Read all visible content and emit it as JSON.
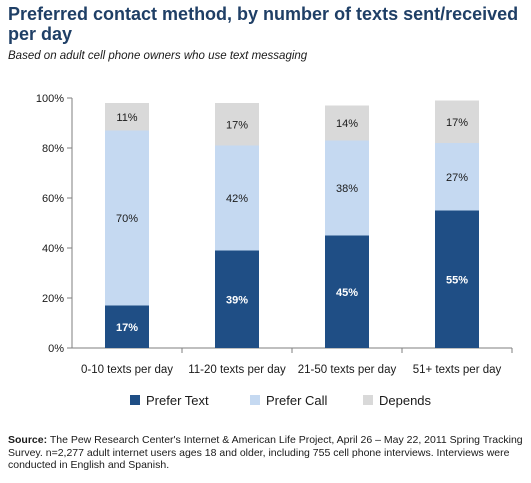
{
  "title": "Preferred contact method, by number of texts sent/received per day",
  "subtitle": "Based on adult cell phone owners who use text messaging",
  "source": {
    "label": "Source:",
    "text": "The Pew Research Center's Internet & American Life Project, April 26 – May 22, 2011 Spring Tracking Survey. n=2,277 adult internet users ages 18 and older, including 755 cell phone interviews. Interviews were conducted in English and Spanish."
  },
  "chart_data": {
    "type": "bar",
    "stacked": true,
    "categories": [
      "0-10 texts per day",
      "11-20 texts per day",
      "21-50 texts per day",
      "51+ texts per day"
    ],
    "series": [
      {
        "name": "Prefer Text",
        "values": [
          17,
          39,
          45,
          55
        ],
        "labels": [
          "17%",
          "39%",
          "45%",
          "55%"
        ],
        "color": "#1f4e85"
      },
      {
        "name": "Prefer Call",
        "values": [
          70,
          42,
          38,
          27
        ],
        "labels": [
          "70%",
          "42%",
          "38%",
          "27%"
        ],
        "color": "#c5d9f1"
      },
      {
        "name": "Depends",
        "values": [
          11,
          17,
          14,
          17
        ],
        "labels": [
          "11%",
          "17%",
          "14%",
          "17%"
        ],
        "color": "#d9d9d9"
      }
    ],
    "ylim": [
      0,
      100
    ],
    "yticks": [
      "0%",
      "20%",
      "40%",
      "60%",
      "80%",
      "100%"
    ],
    "grid": false,
    "legend": "bottom"
  }
}
